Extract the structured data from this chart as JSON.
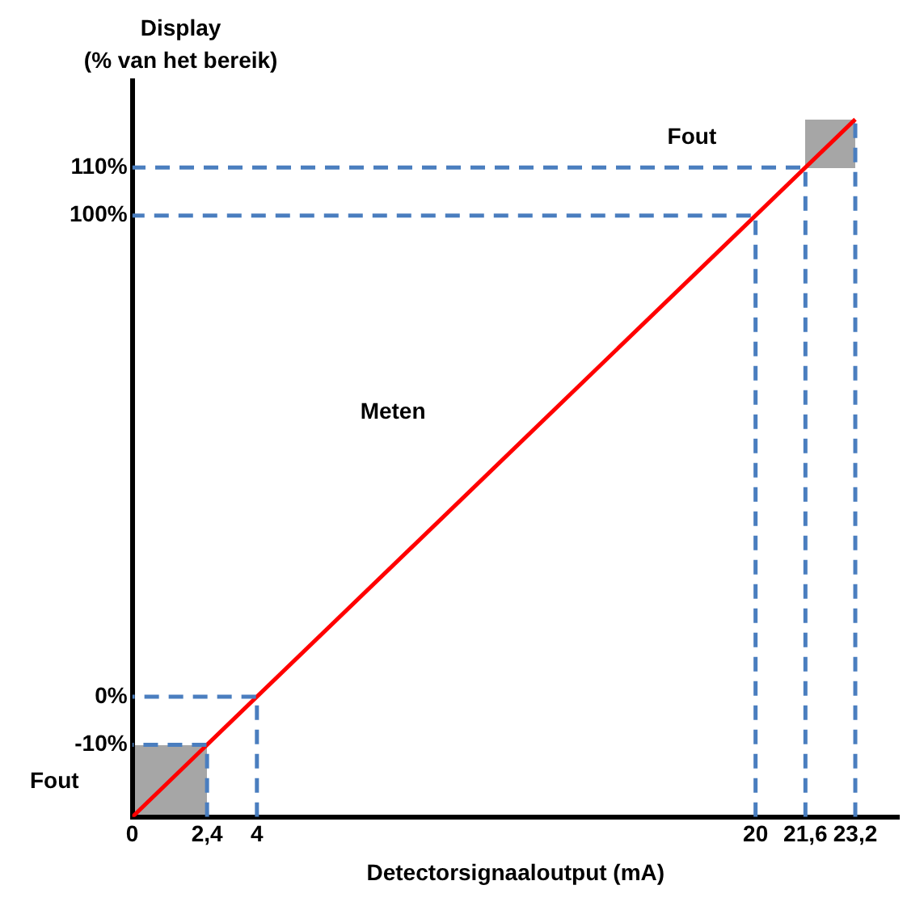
{
  "chart_data": {
    "type": "line",
    "xlabel": "Detectorsignaaloutput (mA)",
    "ylabel": "Display (% van het bereik)",
    "xlim": [
      0,
      24.6
    ],
    "ylim": [
      -25,
      128
    ],
    "xticks": [
      0,
      {
        "value": 2.4,
        "label": "2,4"
      },
      4,
      20,
      {
        "value": 21.6,
        "label": "21,6"
      },
      {
        "value": 23.2,
        "label": "23,2"
      }
    ],
    "yticks": [
      {
        "value": -10,
        "label": "-10%"
      },
      {
        "value": 0,
        "label": "0%"
      },
      {
        "value": 100,
        "label": "100%"
      },
      {
        "value": 110,
        "label": "110%"
      }
    ],
    "grid": false,
    "legend": false,
    "marker": "none",
    "series": [
      {
        "type": "line",
        "line_style": "dashed",
        "color": "#4a7ebf",
        "x": [
          2.4,
          2.4,
          0
        ],
        "values": [
          -25,
          -10,
          -10
        ]
      },
      {
        "type": "line",
        "line_style": "dashed",
        "color": "#4a7ebf",
        "x": [
          4,
          4,
          0
        ],
        "values": [
          -25,
          0,
          0
        ]
      },
      {
        "type": "line",
        "line_style": "dashed",
        "color": "#4a7ebf",
        "x": [
          20,
          20,
          0
        ],
        "values": [
          -25,
          100,
          100
        ]
      },
      {
        "type": "line",
        "line_style": "dashed",
        "color": "#4a7ebf",
        "x": [
          21.6,
          21.6,
          0
        ],
        "values": [
          -25,
          110,
          110
        ]
      },
      {
        "type": "line",
        "line_style": "dashed",
        "color": "#4a7ebf",
        "x": [
          23.2,
          23.2
        ],
        "values": [
          -25,
          120
        ]
      },
      {
        "type": "line",
        "line_style": "solid",
        "color": "#ff0000",
        "x": [
          0,
          23.2
        ],
        "values": [
          -25,
          120
        ]
      }
    ],
    "annotations": [
      "Fout",
      "Fout",
      "Meten"
    ]
  }
}
